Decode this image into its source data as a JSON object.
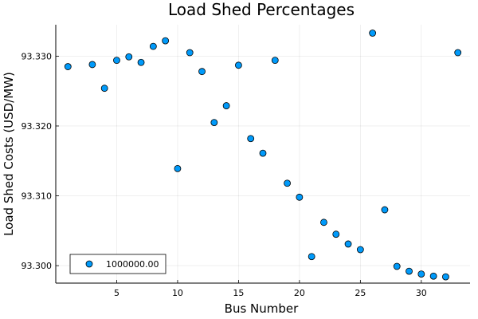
{
  "chart_data": {
    "type": "scatter",
    "title": "Load Shed Percentages",
    "xlabel": "Bus Number",
    "ylabel": "Load Shed Costs (USD/MW)",
    "xlim": [
      0,
      34
    ],
    "ylim": [
      93.2975,
      93.3345
    ],
    "xticks": [
      5,
      10,
      15,
      20,
      25,
      30
    ],
    "yticks": [
      93.3,
      93.31,
      93.32,
      93.33
    ],
    "ytick_labels": [
      "93.300",
      "93.310",
      "93.320",
      "93.330"
    ],
    "grid": true,
    "legend_position": "bottom-left",
    "series": [
      {
        "name": "1000000.00",
        "color": "#009AFA",
        "x": [
          1,
          3,
          4,
          5,
          6,
          7,
          8,
          9,
          10,
          11,
          12,
          13,
          14,
          15,
          16,
          17,
          18,
          19,
          20,
          21,
          22,
          23,
          24,
          25,
          26,
          27,
          28,
          29,
          30,
          31,
          32,
          33
        ],
        "y": [
          93.3285,
          93.3288,
          93.3254,
          93.3294,
          93.3299,
          93.3291,
          93.3314,
          93.3322,
          93.3139,
          93.3305,
          93.3278,
          93.3205,
          93.3229,
          93.3287,
          93.3182,
          93.3161,
          93.3294,
          93.3118,
          93.3098,
          93.3013,
          93.3062,
          93.3045,
          93.3031,
          93.3023,
          93.3333,
          93.308,
          93.2999,
          93.2992,
          93.2988,
          93.2985,
          93.2984,
          93.3305
        ]
      }
    ]
  }
}
